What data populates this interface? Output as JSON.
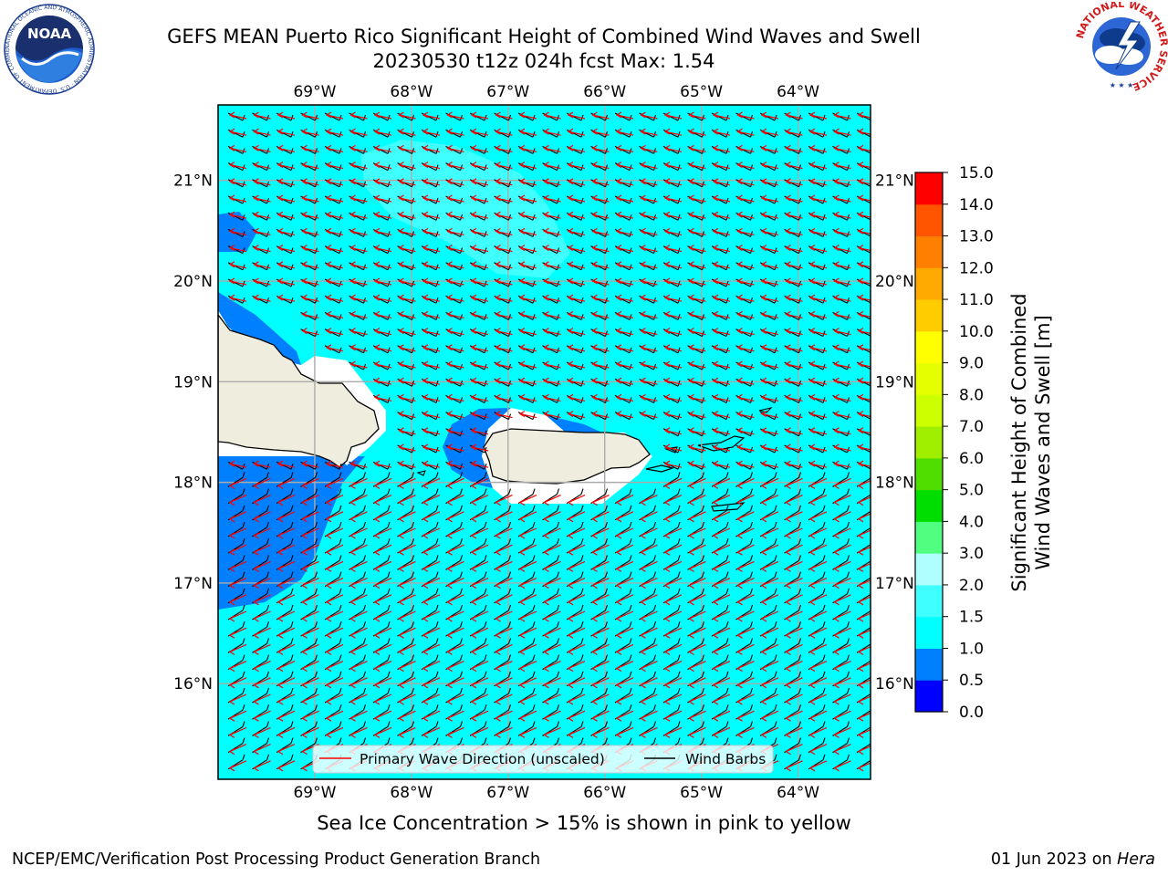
{
  "header": {
    "title_line1": "GEFS MEAN Puerto Rico Significant Height of Combined Wind Waves and Swell",
    "title_line2": "20230530 t12z 024h fcst   Max: 1.54"
  },
  "logos": {
    "noaa_text": "NOAA",
    "noaa_ring_text": "NATIONAL OCEANIC AND ATMOSPHERIC ADMINISTRATION · U.S. DEPARTMENT OF COMMERCE",
    "nws_ring_text": "NATIONAL WEATHER SERVICE"
  },
  "map": {
    "lon_ticks": [
      "69°W",
      "68°W",
      "67°W",
      "66°W",
      "65°W",
      "64°W"
    ],
    "lat_ticks": [
      "21°N",
      "20°N",
      "19°N",
      "18°N",
      "17°N",
      "16°N"
    ],
    "lon_values": [
      -69,
      -68,
      -67,
      -66,
      -65,
      -64
    ],
    "lat_values": [
      21,
      20,
      19,
      18,
      17,
      16
    ],
    "extent": {
      "lon_min": -70,
      "lon_max": -63.25,
      "lat_min": 15.05,
      "lat_max": 21.75
    },
    "legend": {
      "primary_wave": "Primary Wave Direction (unscaled)",
      "wind_barbs": "Wind Barbs"
    },
    "colors": {
      "ocean_main": "#00ffff",
      "land": "#efedde",
      "primary_wave_arrow": "#ff0000",
      "wind_barb": "#000000"
    }
  },
  "colorbar": {
    "label": "Significant Height of Combined\nWind Waves and Swell [m]",
    "label_line1": "Significant Height of Combined",
    "label_line2": "Wind Waves and Swell [m]",
    "levels": [
      "0.0",
      "0.5",
      "1.0",
      "1.5",
      "2.0",
      "3.0",
      "4.0",
      "5.0",
      "6.0",
      "7.0",
      "8.0",
      "9.0",
      "10.0",
      "11.0",
      "12.0",
      "13.0",
      "14.0",
      "15.0"
    ],
    "colors": [
      "#0000ff",
      "#0080ff",
      "#00ffff",
      "#40ffff",
      "#b0ffff",
      "#50ff80",
      "#00dd00",
      "#50dd00",
      "#a0ee00",
      "#ccff00",
      "#e6ff00",
      "#ffff00",
      "#ffcc00",
      "#ffaa00",
      "#ff8000",
      "#ff5500",
      "#ff0000"
    ]
  },
  "subtitle": "Sea Ice Concentration > 15% is shown in pink to yellow",
  "footer": {
    "left": "NCEP/EMC/Verification Post Processing Product Generation Branch",
    "right_date": "01 Jun 2023 on",
    "right_host": "Hera"
  }
}
